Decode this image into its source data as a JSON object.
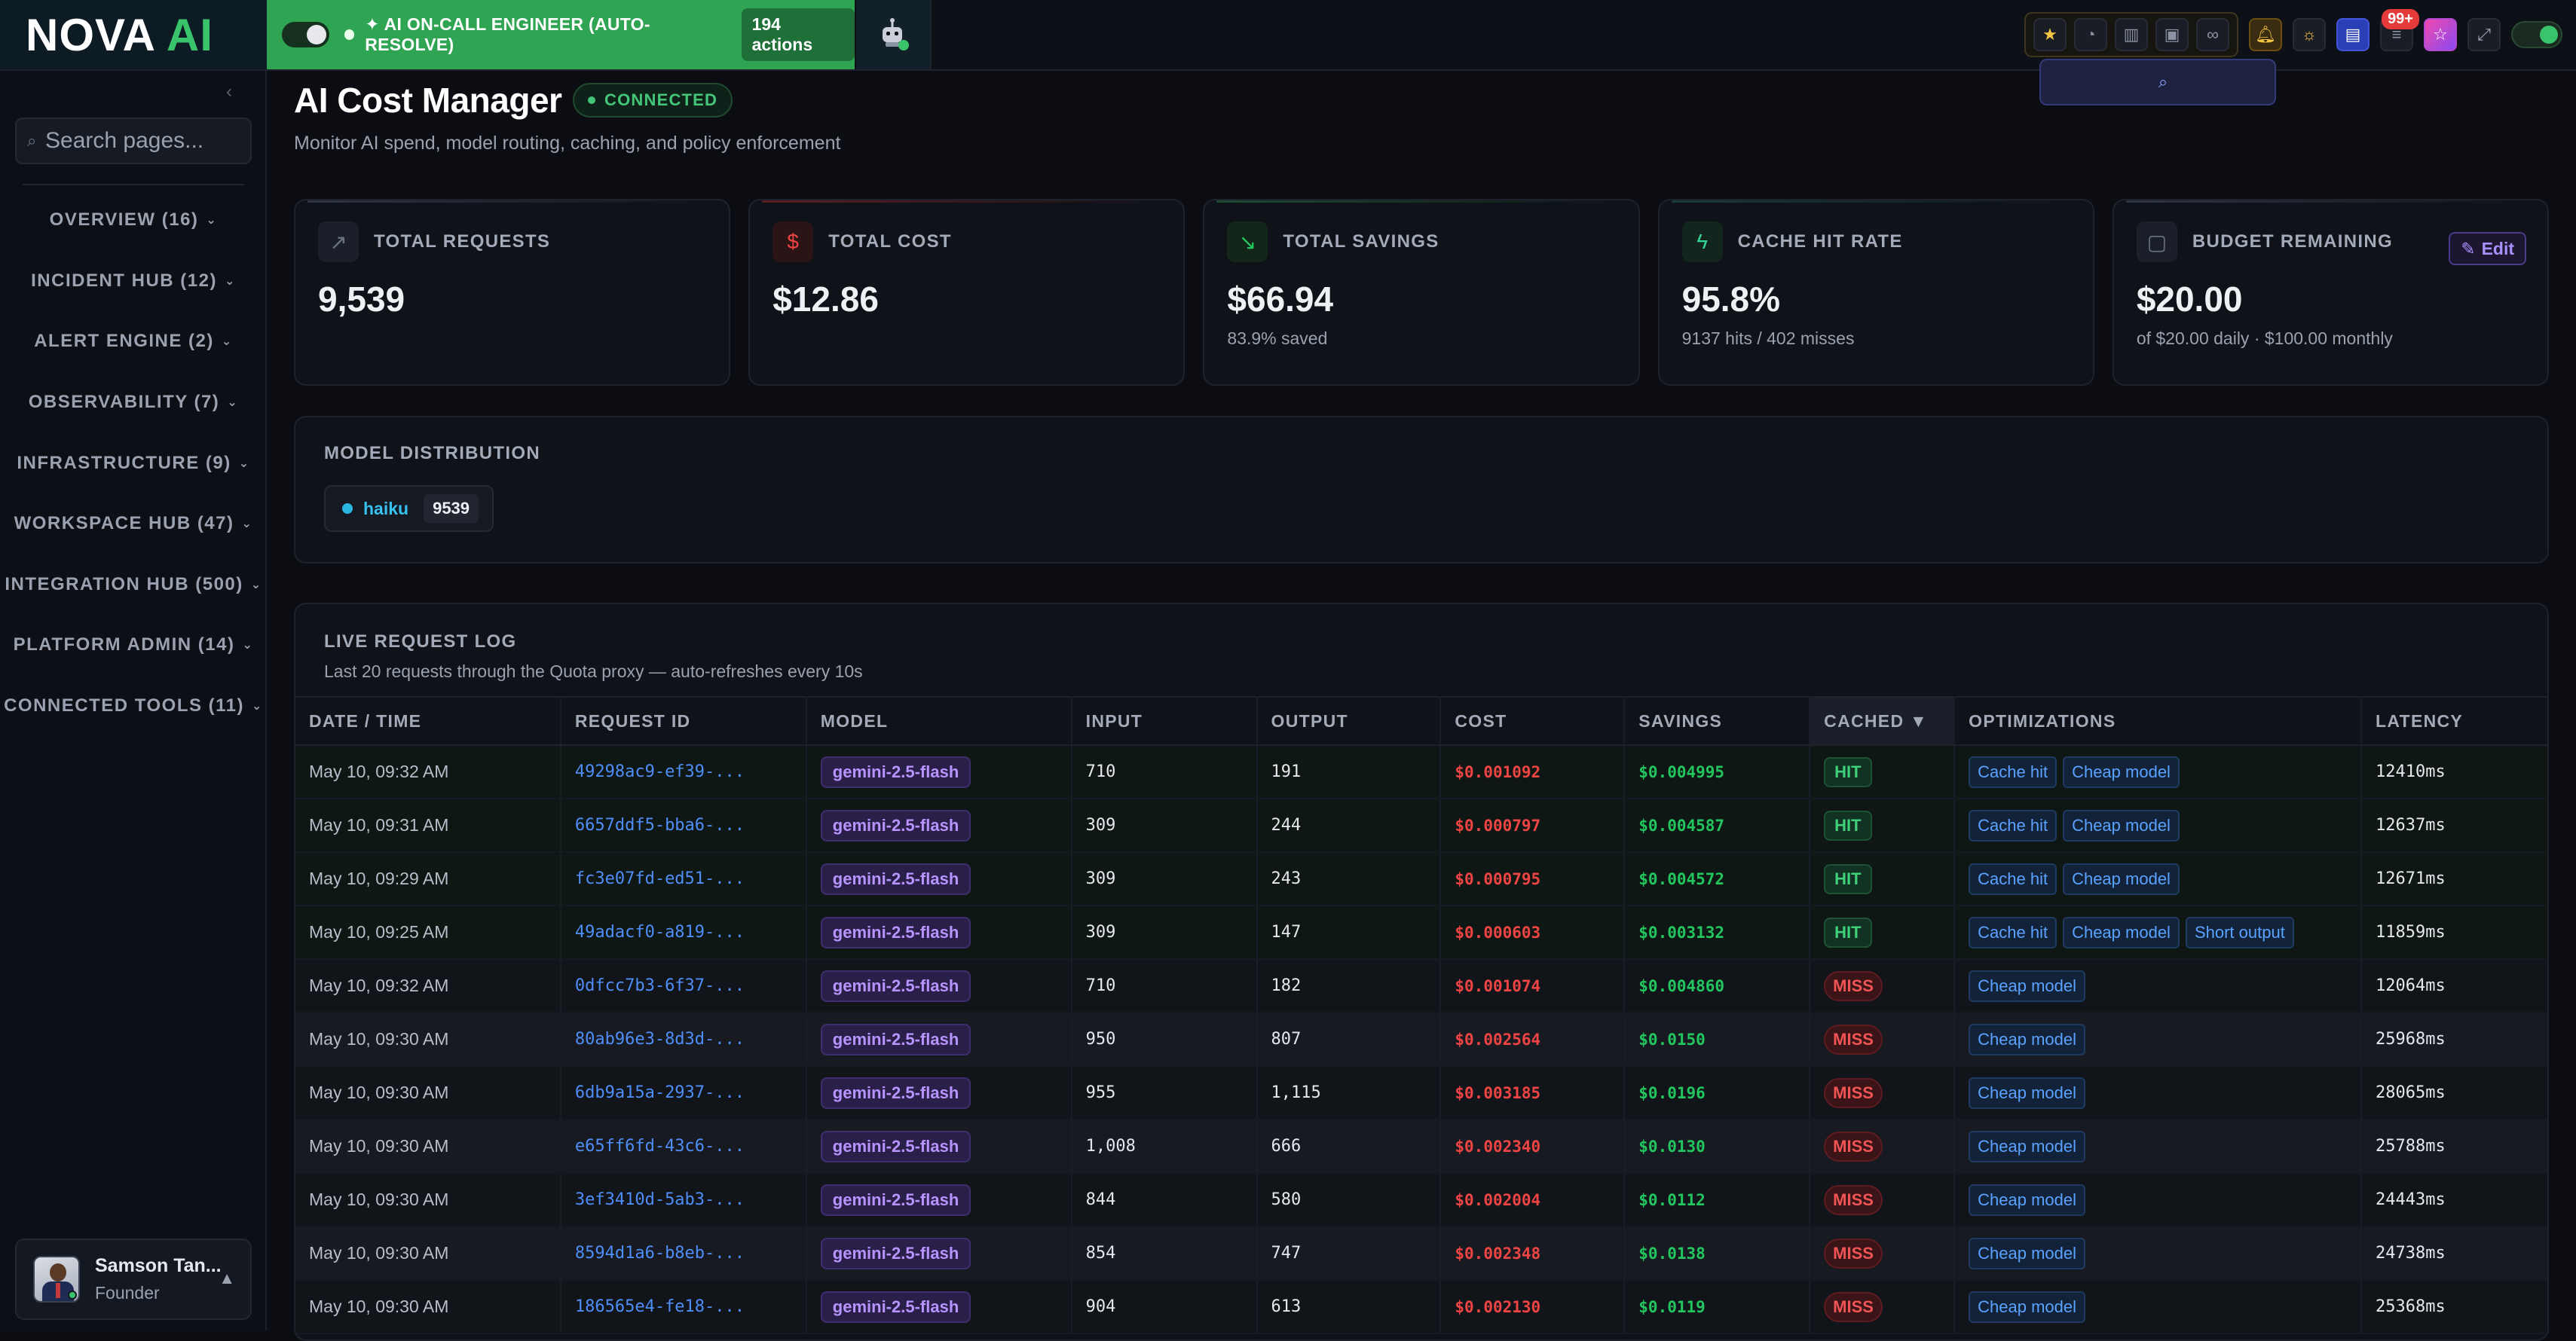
{
  "brand": {
    "part1": "NOVA",
    "part2": "AI"
  },
  "oncall": {
    "label": "✦ AI ON-CALL ENGINEER (AUTO-RESOLVE)",
    "count": "194 actions"
  },
  "toolbar": {
    "notifications_badge": "99+"
  },
  "sidebar": {
    "search_placeholder": "Search pages...",
    "items": [
      {
        "label": "OVERVIEW (16)"
      },
      {
        "label": "INCIDENT HUB (12)"
      },
      {
        "label": "ALERT ENGINE (2)"
      },
      {
        "label": "OBSERVABILITY (7)"
      },
      {
        "label": "INFRASTRUCTURE (9)"
      },
      {
        "label": "WORKSPACE HUB (47)"
      },
      {
        "label": "INTEGRATION HUB (500)"
      },
      {
        "label": "PLATFORM ADMIN (14)"
      },
      {
        "label": "CONNECTED TOOLS (11)"
      }
    ],
    "user": {
      "name": "Samson Tan...",
      "role": "Founder"
    }
  },
  "page": {
    "title": "AI Cost Manager",
    "status": "CONNECTED",
    "subtitle": "Monitor AI spend, model routing, caching, and policy enforcement"
  },
  "stats": {
    "total_requests": {
      "label": "TOTAL REQUESTS",
      "value": "9,539"
    },
    "total_cost": {
      "label": "TOTAL COST",
      "value": "$12.86"
    },
    "total_savings": {
      "label": "TOTAL SAVINGS",
      "value": "$66.94",
      "sub": "83.9% saved"
    },
    "cache_hit_rate": {
      "label": "CACHE HIT RATE",
      "value": "95.8%",
      "sub": "9137 hits / 402 misses"
    },
    "budget": {
      "label": "BUDGET REMAINING",
      "value": "$20.00",
      "sub": "of $20.00 daily · $100.00 monthly",
      "edit_label": "Edit"
    }
  },
  "distribution": {
    "title": "MODEL DISTRIBUTION",
    "model": "haiku",
    "count": "9539"
  },
  "log": {
    "title": "LIVE REQUEST LOG",
    "description": "Last 20 requests through the Quota proxy — auto-refreshes every 10s",
    "columns": {
      "date": "DATE / TIME",
      "id": "REQUEST ID",
      "model": "MODEL",
      "input": "INPUT",
      "output": "OUTPUT",
      "cost": "COST",
      "savings": "SAVINGS",
      "cached": "CACHED ▼",
      "opt": "OPTIMIZATIONS",
      "latency": "LATENCY"
    },
    "rows": [
      {
        "date": "May 10, 09:32 AM",
        "id": "49298ac9-ef39-...",
        "model": "gemini-2.5-flash",
        "input": "710",
        "output": "191",
        "cost": "$0.001092",
        "savings": "$0.004995",
        "cached": "HIT",
        "opts": [
          "Cache hit",
          "Cheap model"
        ],
        "latency": "12410ms"
      },
      {
        "date": "May 10, 09:31 AM",
        "id": "6657ddf5-bba6-...",
        "model": "gemini-2.5-flash",
        "input": "309",
        "output": "244",
        "cost": "$0.000797",
        "savings": "$0.004587",
        "cached": "HIT",
        "opts": [
          "Cache hit",
          "Cheap model"
        ],
        "latency": "12637ms"
      },
      {
        "date": "May 10, 09:29 AM",
        "id": "fc3e07fd-ed51-...",
        "model": "gemini-2.5-flash",
        "input": "309",
        "output": "243",
        "cost": "$0.000795",
        "savings": "$0.004572",
        "cached": "HIT",
        "opts": [
          "Cache hit",
          "Cheap model"
        ],
        "latency": "12671ms"
      },
      {
        "date": "May 10, 09:25 AM",
        "id": "49adacf0-a819-...",
        "model": "gemini-2.5-flash",
        "input": "309",
        "output": "147",
        "cost": "$0.000603",
        "savings": "$0.003132",
        "cached": "HIT",
        "opts": [
          "Cache hit",
          "Cheap model",
          "Short output"
        ],
        "latency": "11859ms"
      },
      {
        "date": "May 10, 09:32 AM",
        "id": "0dfcc7b3-6f37-...",
        "model": "gemini-2.5-flash",
        "input": "710",
        "output": "182",
        "cost": "$0.001074",
        "savings": "$0.004860",
        "cached": "MISS",
        "opts": [
          "Cheap model"
        ],
        "latency": "12064ms"
      },
      {
        "date": "May 10, 09:30 AM",
        "id": "80ab96e3-8d3d-...",
        "model": "gemini-2.5-flash",
        "input": "950",
        "output": "807",
        "cost": "$0.002564",
        "savings": "$0.0150",
        "cached": "MISS",
        "opts": [
          "Cheap model"
        ],
        "latency": "25968ms"
      },
      {
        "date": "May 10, 09:30 AM",
        "id": "6db9a15a-2937-...",
        "model": "gemini-2.5-flash",
        "input": "955",
        "output": "1,115",
        "cost": "$0.003185",
        "savings": "$0.0196",
        "cached": "MISS",
        "opts": [
          "Cheap model"
        ],
        "latency": "28065ms"
      },
      {
        "date": "May 10, 09:30 AM",
        "id": "e65ff6fd-43c6-...",
        "model": "gemini-2.5-flash",
        "input": "1,008",
        "output": "666",
        "cost": "$0.002340",
        "savings": "$0.0130",
        "cached": "MISS",
        "opts": [
          "Cheap model"
        ],
        "latency": "25788ms"
      },
      {
        "date": "May 10, 09:30 AM",
        "id": "3ef3410d-5ab3-...",
        "model": "gemini-2.5-flash",
        "input": "844",
        "output": "580",
        "cost": "$0.002004",
        "savings": "$0.0112",
        "cached": "MISS",
        "opts": [
          "Cheap model"
        ],
        "latency": "24443ms"
      },
      {
        "date": "May 10, 09:30 AM",
        "id": "8594d1a6-b8eb-...",
        "model": "gemini-2.5-flash",
        "input": "854",
        "output": "747",
        "cost": "$0.002348",
        "savings": "$0.0138",
        "cached": "MISS",
        "opts": [
          "Cheap model"
        ],
        "latency": "24738ms"
      },
      {
        "date": "May 10, 09:30 AM",
        "id": "186565e4-fe18-...",
        "model": "gemini-2.5-flash",
        "input": "904",
        "output": "613",
        "cost": "$0.002130",
        "savings": "$0.0119",
        "cached": "MISS",
        "opts": [
          "Cheap model"
        ],
        "latency": "25368ms"
      }
    ]
  }
}
